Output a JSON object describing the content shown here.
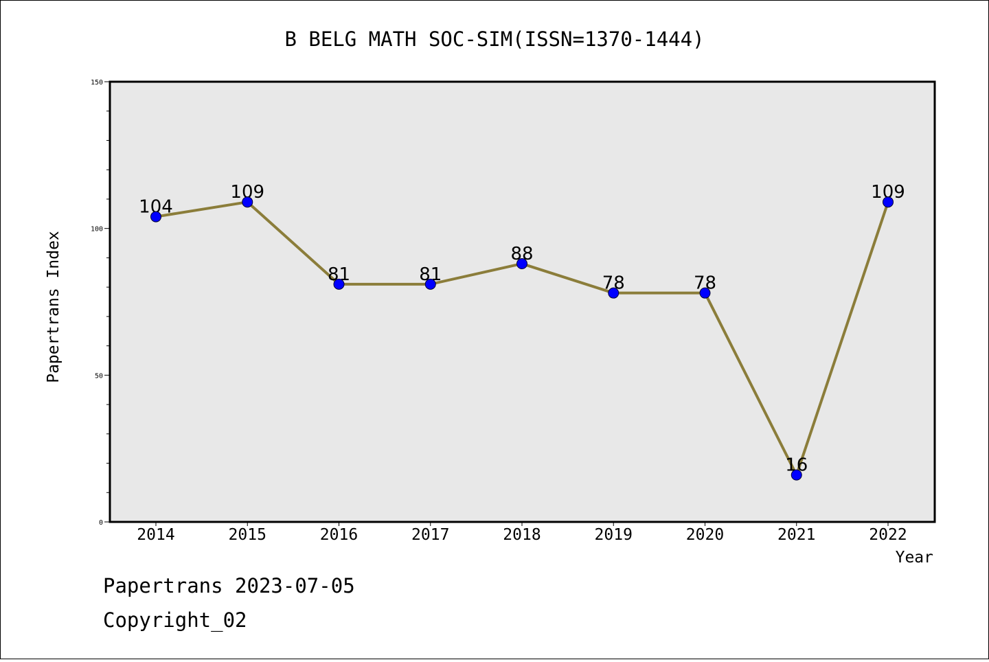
{
  "chart_data": {
    "type": "line",
    "title": "B BELG MATH SOC-SIM(ISSN=1370-1444)",
    "xlabel": "Year",
    "ylabel": "Papertrans Index",
    "x": [
      "2014",
      "2015",
      "2016",
      "2017",
      "2018",
      "2019",
      "2020",
      "2021",
      "2022"
    ],
    "series": [
      {
        "values": [
          104,
          109,
          81,
          81,
          88,
          78,
          78,
          16,
          109
        ]
      }
    ],
    "data_labels": [
      "104",
      "109",
      "81",
      "81",
      "88",
      "78",
      "78",
      "16",
      "109"
    ],
    "ylim": [
      0,
      150
    ],
    "yticks": [
      "0",
      "50",
      "100",
      "150"
    ],
    "grid": false,
    "legend": "none",
    "line_color": "#8B7D3A",
    "marker_color": "#0000FF",
    "plot_background": "#E8E8E8"
  },
  "footer": {
    "line1": "Papertrans 2023-07-05",
    "line2": "Copyright_02"
  }
}
